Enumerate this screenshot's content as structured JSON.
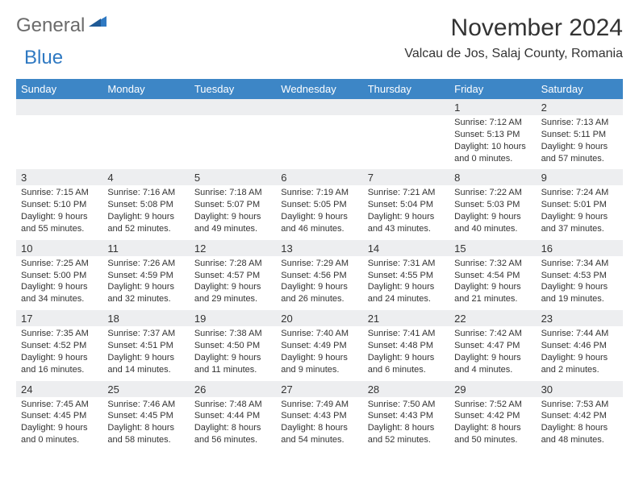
{
  "brand": {
    "part1": "General",
    "part2": "Blue"
  },
  "title": "November 2024",
  "location": "Valcau de Jos, Salaj County, Romania",
  "colors": {
    "header_bg": "#3d86c6",
    "header_text": "#ffffff",
    "daynum_bg": "#edeef0",
    "text": "#333333",
    "brand_gray": "#6b6b6b",
    "brand_blue": "#2f79c2"
  },
  "dayNames": [
    "Sunday",
    "Monday",
    "Tuesday",
    "Wednesday",
    "Thursday",
    "Friday",
    "Saturday"
  ],
  "weeks": [
    [
      null,
      null,
      null,
      null,
      null,
      {
        "d": "1",
        "sr": "7:12 AM",
        "ss": "5:13 PM",
        "dl": "10 hours and 0 minutes."
      },
      {
        "d": "2",
        "sr": "7:13 AM",
        "ss": "5:11 PM",
        "dl": "9 hours and 57 minutes."
      }
    ],
    [
      {
        "d": "3",
        "sr": "7:15 AM",
        "ss": "5:10 PM",
        "dl": "9 hours and 55 minutes."
      },
      {
        "d": "4",
        "sr": "7:16 AM",
        "ss": "5:08 PM",
        "dl": "9 hours and 52 minutes."
      },
      {
        "d": "5",
        "sr": "7:18 AM",
        "ss": "5:07 PM",
        "dl": "9 hours and 49 minutes."
      },
      {
        "d": "6",
        "sr": "7:19 AM",
        "ss": "5:05 PM",
        "dl": "9 hours and 46 minutes."
      },
      {
        "d": "7",
        "sr": "7:21 AM",
        "ss": "5:04 PM",
        "dl": "9 hours and 43 minutes."
      },
      {
        "d": "8",
        "sr": "7:22 AM",
        "ss": "5:03 PM",
        "dl": "9 hours and 40 minutes."
      },
      {
        "d": "9",
        "sr": "7:24 AM",
        "ss": "5:01 PM",
        "dl": "9 hours and 37 minutes."
      }
    ],
    [
      {
        "d": "10",
        "sr": "7:25 AM",
        "ss": "5:00 PM",
        "dl": "9 hours and 34 minutes."
      },
      {
        "d": "11",
        "sr": "7:26 AM",
        "ss": "4:59 PM",
        "dl": "9 hours and 32 minutes."
      },
      {
        "d": "12",
        "sr": "7:28 AM",
        "ss": "4:57 PM",
        "dl": "9 hours and 29 minutes."
      },
      {
        "d": "13",
        "sr": "7:29 AM",
        "ss": "4:56 PM",
        "dl": "9 hours and 26 minutes."
      },
      {
        "d": "14",
        "sr": "7:31 AM",
        "ss": "4:55 PM",
        "dl": "9 hours and 24 minutes."
      },
      {
        "d": "15",
        "sr": "7:32 AM",
        "ss": "4:54 PM",
        "dl": "9 hours and 21 minutes."
      },
      {
        "d": "16",
        "sr": "7:34 AM",
        "ss": "4:53 PM",
        "dl": "9 hours and 19 minutes."
      }
    ],
    [
      {
        "d": "17",
        "sr": "7:35 AM",
        "ss": "4:52 PM",
        "dl": "9 hours and 16 minutes."
      },
      {
        "d": "18",
        "sr": "7:37 AM",
        "ss": "4:51 PM",
        "dl": "9 hours and 14 minutes."
      },
      {
        "d": "19",
        "sr": "7:38 AM",
        "ss": "4:50 PM",
        "dl": "9 hours and 11 minutes."
      },
      {
        "d": "20",
        "sr": "7:40 AM",
        "ss": "4:49 PM",
        "dl": "9 hours and 9 minutes."
      },
      {
        "d": "21",
        "sr": "7:41 AM",
        "ss": "4:48 PM",
        "dl": "9 hours and 6 minutes."
      },
      {
        "d": "22",
        "sr": "7:42 AM",
        "ss": "4:47 PM",
        "dl": "9 hours and 4 minutes."
      },
      {
        "d": "23",
        "sr": "7:44 AM",
        "ss": "4:46 PM",
        "dl": "9 hours and 2 minutes."
      }
    ],
    [
      {
        "d": "24",
        "sr": "7:45 AM",
        "ss": "4:45 PM",
        "dl": "9 hours and 0 minutes."
      },
      {
        "d": "25",
        "sr": "7:46 AM",
        "ss": "4:45 PM",
        "dl": "8 hours and 58 minutes."
      },
      {
        "d": "26",
        "sr": "7:48 AM",
        "ss": "4:44 PM",
        "dl": "8 hours and 56 minutes."
      },
      {
        "d": "27",
        "sr": "7:49 AM",
        "ss": "4:43 PM",
        "dl": "8 hours and 54 minutes."
      },
      {
        "d": "28",
        "sr": "7:50 AM",
        "ss": "4:43 PM",
        "dl": "8 hours and 52 minutes."
      },
      {
        "d": "29",
        "sr": "7:52 AM",
        "ss": "4:42 PM",
        "dl": "8 hours and 50 minutes."
      },
      {
        "d": "30",
        "sr": "7:53 AM",
        "ss": "4:42 PM",
        "dl": "8 hours and 48 minutes."
      }
    ]
  ],
  "labels": {
    "sunrise": "Sunrise:",
    "sunset": "Sunset:",
    "daylight": "Daylight:"
  }
}
